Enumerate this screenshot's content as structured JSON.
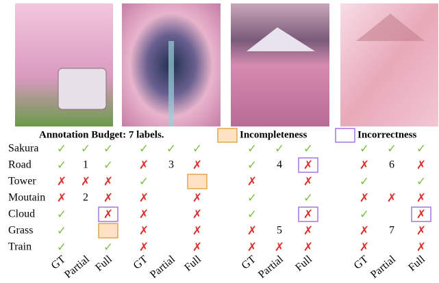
{
  "legend": {
    "budget": "Annotation Budget: 7 labels.",
    "incompleteness": "Incompleteness",
    "incorrectness": "Incorrectness"
  },
  "rows": [
    "Sakura",
    "Road",
    "Tower",
    "Moutain",
    "Cloud",
    "Grass",
    "Train"
  ],
  "columns": [
    "GT",
    "Partial",
    "Full"
  ],
  "groups": [
    {
      "cells": [
        [
          "✓",
          "✓",
          "✓"
        ],
        [
          "✓",
          "1",
          "✓"
        ],
        [
          "✗",
          "✗",
          "✗"
        ],
        [
          "✗",
          "2",
          "✗"
        ],
        [
          "✓",
          null,
          {
            "text": "✗",
            "box": "incorrectness"
          }
        ],
        [
          "✓",
          null,
          {
            "box": "incompleteness"
          }
        ],
        [
          "✓",
          null,
          "✓"
        ]
      ]
    },
    {
      "cells": [
        [
          "✓",
          "✓",
          "✓"
        ],
        [
          "✗",
          "3",
          "✗"
        ],
        [
          "✓",
          null,
          {
            "box": "incompleteness"
          }
        ],
        [
          "✗",
          null,
          "✗"
        ],
        [
          "✗",
          null,
          "✗"
        ],
        [
          "✗",
          null,
          "✗"
        ],
        [
          "✗",
          null,
          "✗"
        ]
      ]
    },
    {
      "cells": [
        [
          "✓",
          "✓",
          "✓"
        ],
        [
          "✓",
          "4",
          {
            "text": "✗",
            "box": "incorrectness"
          }
        ],
        [
          "✗",
          null,
          "✗"
        ],
        [
          "✓",
          null,
          "✓"
        ],
        [
          "✓",
          null,
          {
            "text": "✗",
            "box": "incorrectness"
          }
        ],
        [
          "✗",
          "5",
          "✗"
        ],
        [
          "✗",
          "✗",
          "✗"
        ]
      ]
    },
    {
      "cells": [
        [
          "✓",
          "✓",
          "✓"
        ],
        [
          "✗",
          "6",
          "✗"
        ],
        [
          "✓",
          null,
          "✓"
        ],
        [
          "✗",
          "✗",
          "✗"
        ],
        [
          "✓",
          null,
          {
            "text": "✗",
            "box": "incorrectness"
          }
        ],
        [
          "✗",
          "7",
          "✗"
        ],
        [
          "✗",
          null,
          "✗"
        ]
      ]
    }
  ]
}
